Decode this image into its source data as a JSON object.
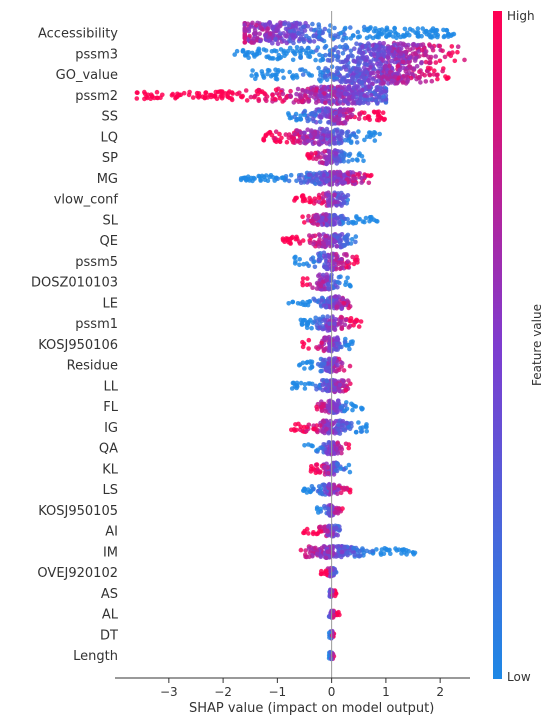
{
  "chart_data": {
    "type": "scatter",
    "subtype": "shap-beeswarm",
    "xlabel": "SHAP value (impact on model output)",
    "xlim": [
      -3.9,
      2.55
    ],
    "xticks": [
      -3,
      -2,
      -1,
      0,
      1,
      2
    ],
    "xtick_labels": [
      "−3",
      "−2",
      "−1",
      "0",
      "1",
      "2"
    ],
    "colorbar": {
      "title": "Feature value",
      "high_label": "High",
      "low_label": "Low",
      "low_color": "#1e88e5",
      "high_color": "#ff0052"
    },
    "grid": false,
    "features": [
      {
        "name": "Accessibility",
        "min": -1.6,
        "max": 2.3,
        "hi_side": "neg",
        "width": 11,
        "mode": -1.0
      },
      {
        "name": "pssm3",
        "min": -1.8,
        "max": 2.45,
        "hi_side": "pos",
        "width": 11,
        "mode": 1.0
      },
      {
        "name": "GO_value",
        "min": -1.5,
        "max": 2.2,
        "hi_side": "pos",
        "width": 10,
        "mode": 0.8
      },
      {
        "name": "pssm2",
        "min": -3.6,
        "max": 1.0,
        "hi_side": "neg",
        "width": 9,
        "mode": 0.3
      },
      {
        "name": "SS",
        "min": -0.8,
        "max": 1.0,
        "hi_side": "pos",
        "width": 8,
        "mode": 0.0
      },
      {
        "name": "LQ",
        "min": -1.3,
        "max": 0.9,
        "hi_side": "neg",
        "width": 8,
        "mode": -0.2
      },
      {
        "name": "SP",
        "min": -0.5,
        "max": 0.6,
        "hi_side": "neg",
        "width": 7,
        "mode": 0.0
      },
      {
        "name": "MG",
        "min": -1.7,
        "max": 0.75,
        "hi_side": "pos",
        "width": 6,
        "mode": 0.05
      },
      {
        "name": "vlow_conf",
        "min": -0.7,
        "max": 0.3,
        "hi_side": "neg",
        "width": 7,
        "mode": 0.05
      },
      {
        "name": "SL",
        "min": -0.55,
        "max": 0.85,
        "hi_side": "neg",
        "width": 5,
        "mode": -0.1
      },
      {
        "name": "QE",
        "min": -0.95,
        "max": 0.45,
        "hi_side": "neg",
        "width": 7,
        "mode": 0.0
      },
      {
        "name": "pssm5",
        "min": -0.7,
        "max": 0.5,
        "hi_side": "pos",
        "width": 9,
        "mode": 0.0
      },
      {
        "name": "DOSZ010103",
        "min": -0.55,
        "max": 0.35,
        "hi_side": "neg",
        "width": 8,
        "mode": -0.1
      },
      {
        "name": "LE",
        "min": -0.8,
        "max": 0.35,
        "hi_side": "pos",
        "width": 6,
        "mode": 0.05
      },
      {
        "name": "pssm1",
        "min": -0.6,
        "max": 0.55,
        "hi_side": "pos",
        "width": 7,
        "mode": 0.0
      },
      {
        "name": "KOSJ950106",
        "min": -0.55,
        "max": 0.4,
        "hi_side": "neg",
        "width": 7,
        "mode": 0.0
      },
      {
        "name": "Residue",
        "min": -0.6,
        "max": 0.35,
        "hi_side": "pos",
        "width": 7,
        "mode": 0.0
      },
      {
        "name": "LL",
        "min": -0.8,
        "max": 0.35,
        "hi_side": "pos",
        "width": 6,
        "mode": 0.05
      },
      {
        "name": "FL",
        "min": -0.3,
        "max": 0.6,
        "hi_side": "neg",
        "width": 6,
        "mode": 0.0
      },
      {
        "name": "IG",
        "min": -0.75,
        "max": 0.65,
        "hi_side": "neg",
        "width": 7,
        "mode": 0.0
      },
      {
        "name": "QA",
        "min": -0.5,
        "max": 0.35,
        "hi_side": "pos",
        "width": 6,
        "mode": 0.0
      },
      {
        "name": "KL",
        "min": -0.4,
        "max": 0.35,
        "hi_side": "neg",
        "width": 6,
        "mode": 0.0
      },
      {
        "name": "LS",
        "min": -0.55,
        "max": 0.35,
        "hi_side": "pos",
        "width": 5,
        "mode": 0.0
      },
      {
        "name": "KOSJ950105",
        "min": -0.3,
        "max": 0.3,
        "hi_side": "pos",
        "width": 5,
        "mode": 0.0
      },
      {
        "name": "AI",
        "min": -0.55,
        "max": 0.15,
        "hi_side": "neg",
        "width": 5,
        "mode": 0.0
      },
      {
        "name": "IM",
        "min": -0.6,
        "max": 1.55,
        "hi_side": "neg",
        "width": 6,
        "mode": 0.0
      },
      {
        "name": "OVEJ920102",
        "min": -0.2,
        "max": 0.1,
        "hi_side": "neg",
        "width": 4,
        "mode": 0.0
      },
      {
        "name": "AS",
        "min": -0.05,
        "max": 0.1,
        "hi_side": "pos",
        "width": 3,
        "mode": 0.0
      },
      {
        "name": "AL",
        "min": -0.05,
        "max": 0.15,
        "hi_side": "pos",
        "width": 3,
        "mode": 0.0
      },
      {
        "name": "DT",
        "min": -0.05,
        "max": 0.05,
        "hi_side": "pos",
        "width": 3,
        "mode": 0.0
      },
      {
        "name": "Length",
        "min": -0.05,
        "max": 0.05,
        "hi_side": "pos",
        "width": 3,
        "mode": 0.0
      }
    ]
  }
}
